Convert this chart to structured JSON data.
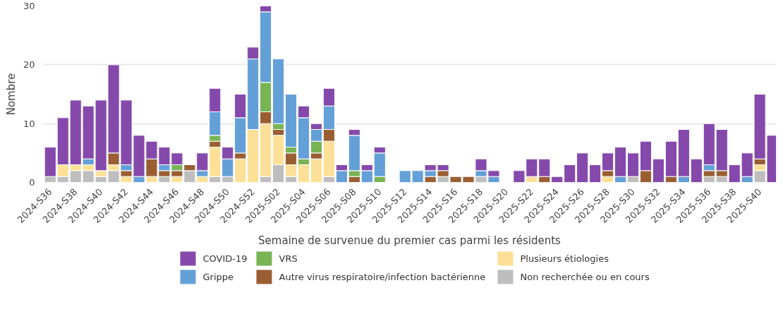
{
  "chart_data": {
    "type": "bar",
    "stacked": true,
    "xlabel": "Semaine de survenue du premier cas parmi les résidents",
    "ylabel": "Nombre",
    "categories": [
      "2024-S36",
      null,
      "2024-S38",
      null,
      "2024-S40",
      null,
      "2024-S42",
      null,
      "2024-S44",
      null,
      "2024-S46",
      null,
      "2024-S48",
      null,
      "2024-S50",
      null,
      "2024-S52",
      null,
      "2025-S02",
      null,
      "2025-S04",
      null,
      "2025-S06",
      null,
      "2025-S08",
      null,
      "2025-S10",
      null,
      "2025-S12",
      null,
      "2025-S14",
      null,
      "2025-S16",
      null,
      "2025-S18",
      null,
      "2025-S20",
      null,
      "2025-S22",
      null,
      "2025-S24",
      null,
      "2025-S26",
      null,
      "2025-S28",
      null,
      "2025-S30",
      null,
      "2025-S32",
      null,
      "2025-S34",
      null,
      "2025-S36",
      null,
      "2025-S38",
      null,
      "2025-S40",
      null
    ],
    "series": [
      {
        "name": "Non recherchée ou en cours",
        "color": "#bebebe",
        "values": [
          1,
          1,
          2,
          2,
          1,
          2,
          0,
          0,
          0,
          1,
          0,
          2,
          0,
          1,
          1,
          0,
          0,
          1,
          3,
          1,
          0,
          0,
          1,
          0,
          0,
          0,
          0,
          0,
          0,
          0,
          0,
          1,
          0,
          0,
          1,
          0,
          0,
          0,
          0,
          0,
          0,
          0,
          0,
          0,
          0,
          0,
          1,
          0,
          0,
          0,
          0,
          0,
          1,
          1,
          0,
          0,
          2,
          0
        ]
      },
      {
        "name": "Plusieurs étiologies",
        "color": "#fde097",
        "values": [
          0,
          2,
          1,
          1,
          1,
          1,
          1,
          0,
          1,
          0,
          1,
          0,
          1,
          5,
          0,
          4,
          9,
          9,
          5,
          2,
          3,
          4,
          6,
          0,
          0,
          0,
          0,
          0,
          0,
          0,
          0,
          0,
          0,
          0,
          0,
          0,
          0,
          0,
          1,
          0,
          0,
          0,
          0,
          0,
          1,
          0,
          0,
          0,
          0,
          0,
          0,
          0,
          0,
          0,
          0,
          0,
          1,
          0
        ]
      },
      {
        "name": "Autre virus respiratoire/infection bactérienne",
        "color": "#9a5e33",
        "values": [
          0,
          0,
          0,
          0,
          0,
          2,
          1,
          0,
          3,
          1,
          1,
          1,
          0,
          1,
          0,
          1,
          0,
          2,
          1,
          2,
          0,
          1,
          2,
          0,
          1,
          0,
          0,
          0,
          0,
          0,
          1,
          1,
          1,
          1,
          0,
          0,
          0,
          0,
          0,
          1,
          0,
          0,
          0,
          0,
          1,
          0,
          0,
          2,
          0,
          1,
          0,
          0,
          1,
          1,
          0,
          0,
          1,
          0
        ]
      },
      {
        "name": "VRS",
        "color": "#78b454",
        "values": [
          0,
          0,
          0,
          0,
          0,
          0,
          0,
          0,
          0,
          0,
          1,
          0,
          0,
          1,
          0,
          0,
          0,
          5,
          1,
          1,
          1,
          2,
          0,
          0,
          1,
          0,
          1,
          0,
          0,
          0,
          0,
          0,
          0,
          0,
          0,
          0,
          0,
          0,
          0,
          0,
          0,
          0,
          0,
          0,
          0,
          0,
          0,
          0,
          0,
          0,
          0,
          0,
          0,
          0,
          0,
          0,
          0,
          0
        ]
      },
      {
        "name": "Grippe",
        "color": "#64a0d8",
        "values": [
          0,
          0,
          0,
          1,
          0,
          0,
          1,
          1,
          0,
          1,
          0,
          0,
          1,
          4,
          3,
          6,
          12,
          12,
          11,
          9,
          7,
          2,
          4,
          2,
          6,
          2,
          4,
          0,
          2,
          2,
          1,
          0,
          0,
          0,
          1,
          1,
          0,
          0,
          0,
          0,
          0,
          0,
          0,
          0,
          0,
          1,
          0,
          0,
          0,
          0,
          1,
          0,
          1,
          0,
          0,
          1,
          0,
          0
        ]
      },
      {
        "name": "COVID-19",
        "color": "#8549ab",
        "values": [
          5,
          8,
          11,
          9,
          12,
          15,
          11,
          7,
          3,
          3,
          2,
          0,
          3,
          4,
          2,
          4,
          2,
          1,
          0,
          0,
          2,
          1,
          3,
          1,
          1,
          1,
          1,
          0,
          0,
          0,
          1,
          1,
          0,
          0,
          2,
          1,
          0,
          2,
          3,
          3,
          1,
          3,
          5,
          3,
          3,
          5,
          4,
          5,
          4,
          6,
          8,
          4,
          7,
          7,
          3,
          4,
          11,
          8
        ]
      }
    ],
    "ylim": [
      0,
      30
    ],
    "yticks": [
      0,
      10,
      20,
      30
    ],
    "grid": "y",
    "legend": "bottom"
  }
}
